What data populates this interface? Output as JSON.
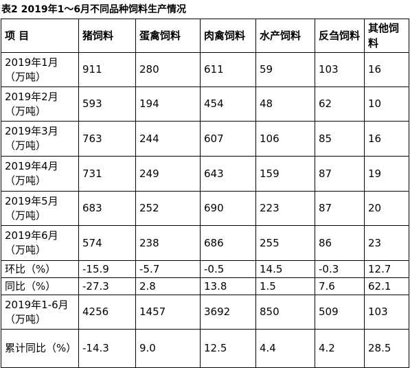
{
  "caption": "表2  2019年1～6月不同品种饲料生产情况",
  "header": [
    "项  目",
    "猪饲料",
    "蛋禽饲料",
    "肉禽饲料",
    "水产饲料",
    "反刍饲料",
    "其他饲料"
  ],
  "rows": [
    {
      "label": "2019年1月（万吨）",
      "values": [
        "911",
        "280",
        "611",
        "59",
        "103",
        "16"
      ]
    },
    {
      "label": "2019年2月（万吨）",
      "values": [
        "593",
        "194",
        "454",
        "48",
        "62",
        "10"
      ]
    },
    {
      "label": "2019年3月（万吨）",
      "values": [
        "763",
        "244",
        "607",
        "106",
        "85",
        "16"
      ]
    },
    {
      "label": "2019年4月（万吨）",
      "values": [
        "731",
        "249",
        "643",
        "159",
        "87",
        "19"
      ]
    },
    {
      "label": "2019年5月（万吨）",
      "values": [
        "683",
        "252",
        "690",
        "223",
        "87",
        "20"
      ]
    },
    {
      "label": "2019年6月（万吨）",
      "values": [
        "574",
        "238",
        "686",
        "255",
        "86",
        "23"
      ]
    },
    {
      "label": "环比（%）",
      "values": [
        "-15.9",
        "-5.7",
        "-0.5",
        "14.5",
        "-0.3",
        "12.7"
      ]
    },
    {
      "label": "同比（%）",
      "values": [
        "-27.3",
        "2.8",
        "13.8",
        "1.5",
        "7.6",
        "62.1"
      ]
    },
    {
      "label": "2019年1-6月（万吨）",
      "values": [
        "4256",
        "1457",
        "3692",
        "850",
        "509",
        "103"
      ]
    },
    {
      "label": "累计同比（%）",
      "values": [
        "-14.3",
        "9.0",
        "12.5",
        "4.4",
        "4.2",
        "28.5"
      ]
    }
  ]
}
